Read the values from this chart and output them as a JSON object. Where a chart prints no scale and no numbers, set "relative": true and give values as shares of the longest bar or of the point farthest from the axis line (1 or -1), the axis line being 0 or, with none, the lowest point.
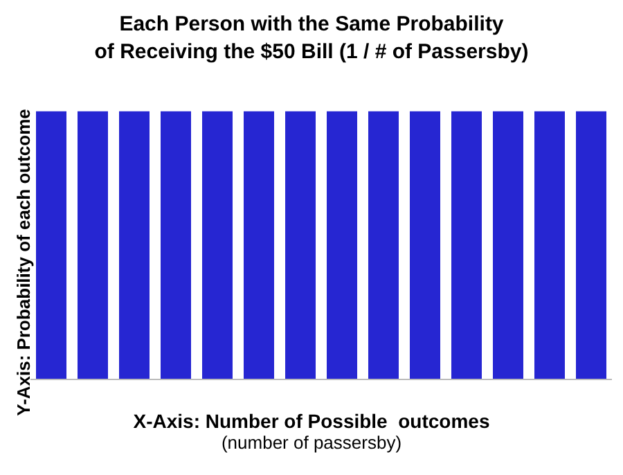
{
  "chart_data": {
    "type": "bar",
    "title": "Each Person with the Same Probability\nof Receiving the $50 Bill (1 / # of Passersby)",
    "xlabel": "X-Axis: Number of Possible  outcomes",
    "ylabel": "Y-Axis: Probability of each outcome",
    "annotations": [
      "(number of passersby)"
    ],
    "categories": [
      null,
      null,
      null,
      null,
      null,
      null,
      null,
      null,
      null,
      null,
      null,
      null,
      null,
      null
    ],
    "values": [
      1,
      1,
      1,
      1,
      1,
      1,
      1,
      1,
      1,
      1,
      1,
      1,
      1,
      1
    ],
    "color": "#2626d2",
    "relative": true
  }
}
